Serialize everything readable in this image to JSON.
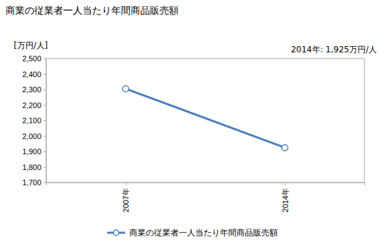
{
  "chart_data": {
    "type": "line",
    "title": "商業の従業者一人当たり年間商品販売額",
    "y_label": "[万円/人]",
    "annotations": [
      "2014年: 1,925万円/人"
    ],
    "categories": [
      "2007年",
      "2014年"
    ],
    "series": [
      {
        "name": "商業の従業者一人当たり年間商品販売額",
        "color": "#4a7ebb",
        "values": [
          2305,
          1925
        ],
        "marker": "circle"
      }
    ],
    "ylim": [
      1700,
      2500
    ],
    "yticks": [
      {
        "value": 1700,
        "label": "1,700"
      },
      {
        "value": 1800,
        "label": "1,800"
      },
      {
        "value": 1900,
        "label": "1,900"
      },
      {
        "value": 2000,
        "label": "2,000"
      },
      {
        "value": 2100,
        "label": "2,100"
      },
      {
        "value": 2200,
        "label": "2,200"
      },
      {
        "value": 2300,
        "label": "2,300"
      },
      {
        "value": 2400,
        "label": "2,400"
      },
      {
        "value": 2500,
        "label": "2,500"
      }
    ],
    "grid": false,
    "legend": "bottom"
  }
}
